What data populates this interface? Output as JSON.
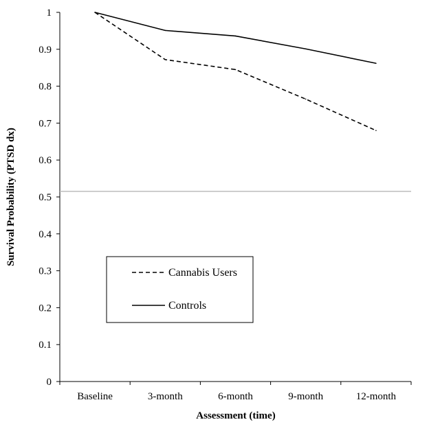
{
  "chart_data": {
    "type": "line",
    "title": "",
    "xlabel": "Assessment (time)",
    "ylabel": "Survival Probability (PTSD dx)",
    "categories": [
      "Baseline",
      "3-month",
      "6-month",
      "9-month",
      "12-month"
    ],
    "ylim": [
      0,
      1
    ],
    "yticks": [
      "0",
      "0.1",
      "0.2",
      "0.3",
      "0.4",
      "0.5",
      "0.6",
      "0.7",
      "0.8",
      "0.9",
      "1"
    ],
    "reference_line_y": 0.515,
    "grid": false,
    "legend_position": "lower-left",
    "series": [
      {
        "name": "Cannabis Users",
        "style": "dashed",
        "color": "#000000",
        "values": [
          1.0,
          0.872,
          0.845,
          0.765,
          0.68
        ]
      },
      {
        "name": "Controls",
        "style": "solid",
        "color": "#000000",
        "values": [
          1.0,
          0.951,
          0.936,
          0.901,
          0.862
        ]
      }
    ]
  }
}
